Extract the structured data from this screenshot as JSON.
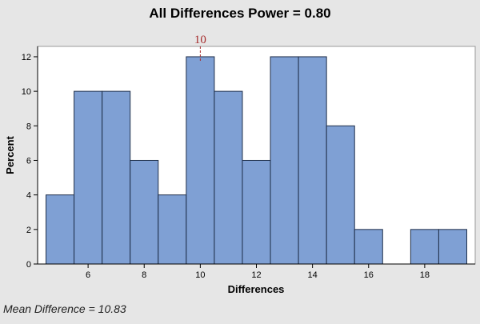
{
  "chart_data": {
    "type": "bar",
    "title": "All Differences Power = 0.80",
    "xlabel": "Differences",
    "ylabel": "Percent",
    "bin_width": 1,
    "bins": [
      {
        "center": 5,
        "value": 4
      },
      {
        "center": 6,
        "value": 10
      },
      {
        "center": 7,
        "value": 10
      },
      {
        "center": 8,
        "value": 6
      },
      {
        "center": 9,
        "value": 4
      },
      {
        "center": 10,
        "value": 12
      },
      {
        "center": 11,
        "value": 10
      },
      {
        "center": 12,
        "value": 6
      },
      {
        "center": 13,
        "value": 12
      },
      {
        "center": 14,
        "value": 12
      },
      {
        "center": 15,
        "value": 8
      },
      {
        "center": 16,
        "value": 2
      },
      {
        "center": 17,
        "value": 0
      },
      {
        "center": 18,
        "value": 2
      },
      {
        "center": 19,
        "value": 2
      }
    ],
    "xlim": [
      4.2,
      19.8
    ],
    "ylim": [
      0,
      12.6
    ],
    "xticks": [
      6,
      8,
      10,
      12,
      14,
      16,
      18
    ],
    "yticks": [
      0,
      2,
      4,
      6,
      8,
      10,
      12
    ],
    "reference_line": {
      "x": 10,
      "label": "10",
      "color": "#a52a2a"
    },
    "bar_color": "#7fa0d4",
    "grid": false,
    "legend": "none"
  },
  "footer": {
    "mean_difference": "Mean Difference = 10.83"
  }
}
